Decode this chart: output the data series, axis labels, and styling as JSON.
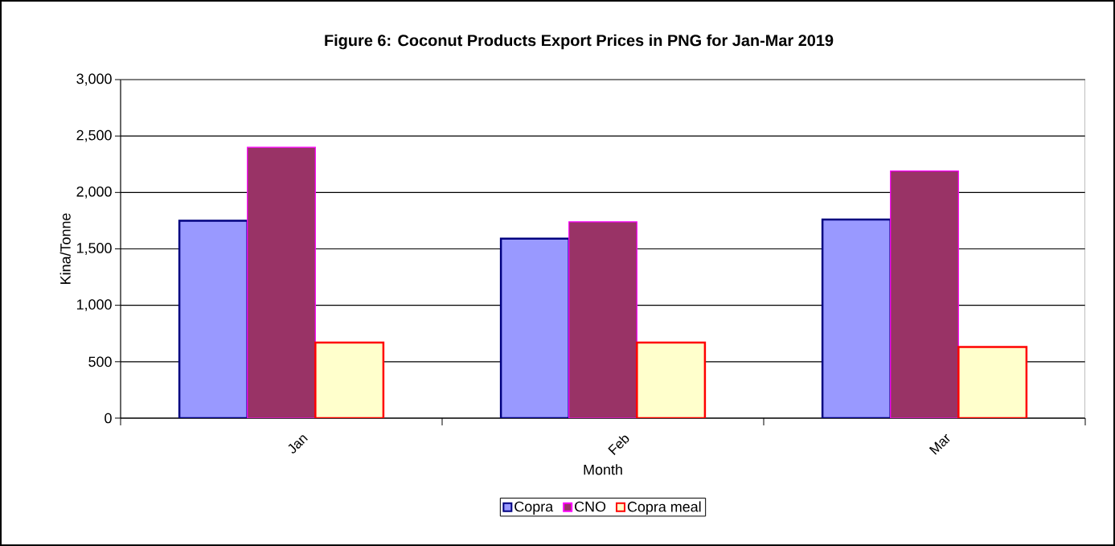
{
  "chart_data": {
    "type": "bar",
    "title": "Figure 6: Coconut Products Export Prices in PNG for Jan-Mar 2019",
    "xlabel": "Month",
    "ylabel": "Kina/Tonne",
    "categories": [
      "Jan",
      "Feb",
      "Mar"
    ],
    "series": [
      {
        "name": "Copra",
        "color": "#9999ff",
        "values": [
          1750,
          1590,
          1760
        ]
      },
      {
        "name": "CNO",
        "color": "#993366",
        "values": [
          2400,
          1740,
          2190
        ]
      },
      {
        "name": "Copra meal",
        "color": "#ffffcc",
        "values": [
          670,
          670,
          630
        ]
      }
    ],
    "ylim": [
      0,
      3000
    ],
    "yticks": [
      {
        "value": 0,
        "label": "0"
      },
      {
        "value": 500,
        "label": "500"
      },
      {
        "value": 1000,
        "label": "1,000"
      },
      {
        "value": 1500,
        "label": "1,500"
      },
      {
        "value": 2000,
        "label": "2,000"
      },
      {
        "value": 2500,
        "label": "2,500"
      },
      {
        "value": 3000,
        "label": "3,000"
      }
    ],
    "grid": "y",
    "legend": "bottom"
  }
}
